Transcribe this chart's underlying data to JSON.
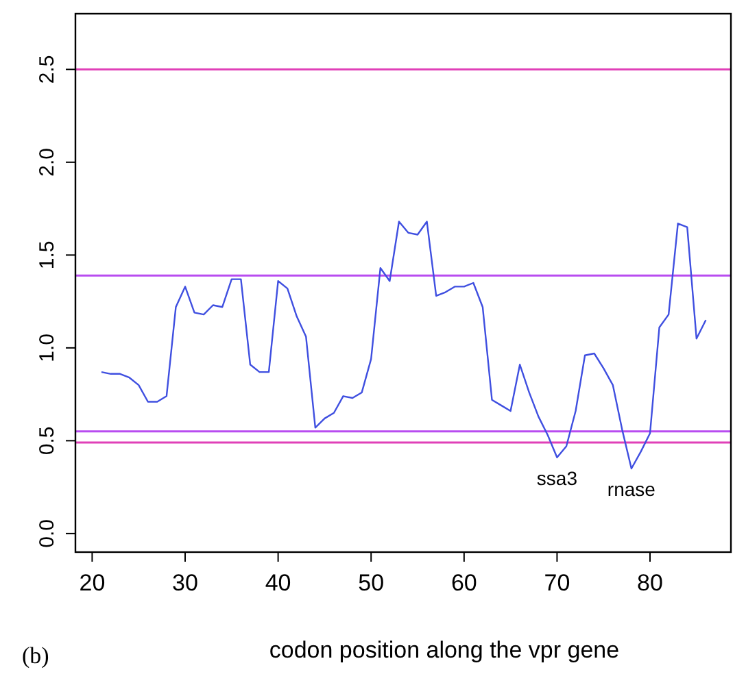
{
  "chart_data": {
    "type": "line",
    "xlabel": "codon position along the vpr gene",
    "annotations": [
      {
        "text": "ssa3",
        "x": 70,
        "y": 0.41
      },
      {
        "text": "rnase",
        "x": 78,
        "y": 0.35
      },
      "(b)"
    ],
    "x": [
      21,
      22,
      23,
      24,
      25,
      26,
      27,
      28,
      29,
      30,
      31,
      32,
      33,
      34,
      35,
      36,
      37,
      38,
      39,
      40,
      41,
      42,
      43,
      44,
      45,
      46,
      47,
      48,
      49,
      50,
      51,
      52,
      53,
      54,
      55,
      56,
      57,
      58,
      59,
      60,
      61,
      62,
      63,
      64,
      65,
      66,
      67,
      68,
      69,
      70,
      71,
      72,
      73,
      74,
      75,
      76,
      77,
      78,
      79,
      80,
      81,
      82,
      83,
      84,
      85,
      86
    ],
    "series": [
      {
        "color": "#3f4fe0",
        "values": [
          0.87,
          0.86,
          0.86,
          0.84,
          0.8,
          0.71,
          0.71,
          0.74,
          1.22,
          1.33,
          1.19,
          1.18,
          1.23,
          1.22,
          1.37,
          1.37,
          0.91,
          0.87,
          0.87,
          1.36,
          1.32,
          1.17,
          1.06,
          0.57,
          0.62,
          0.65,
          0.74,
          0.73,
          0.76,
          0.94,
          1.43,
          1.36,
          1.68,
          1.62,
          1.61,
          1.68,
          1.28,
          1.3,
          1.33,
          1.33,
          1.35,
          1.22,
          0.72,
          0.69,
          0.66,
          0.91,
          0.76,
          0.63,
          0.53,
          0.41,
          0.47,
          0.66,
          0.96,
          0.97,
          0.89,
          0.8,
          0.56,
          0.35,
          0.44,
          0.54,
          1.11,
          1.18,
          1.67,
          1.65,
          1.05,
          1.15
        ]
      }
    ],
    "xlim": [
      18.2,
      88.7
    ],
    "ylim": [
      -0.1,
      2.8
    ],
    "xticks": [
      20,
      30,
      40,
      50,
      60,
      70,
      80
    ],
    "yticks": [
      {
        "value": 0,
        "label": "0.0"
      },
      0.5,
      {
        "value": 1,
        "label": "1.0"
      },
      1.5,
      {
        "value": 2,
        "label": "2.0"
      },
      2.5
    ],
    "ref_lines": [
      {
        "axis": "y",
        "value": 2.5,
        "color": "#e040b8"
      },
      {
        "axis": "y",
        "value": 1.39,
        "color": "#b84cf0"
      },
      {
        "axis": "y",
        "value": 0.55,
        "color": "#b84cf0"
      },
      {
        "axis": "y",
        "value": 0.49,
        "color": "#e040b8"
      }
    ],
    "grid": false,
    "marker": "none",
    "line_style": "solid"
  }
}
